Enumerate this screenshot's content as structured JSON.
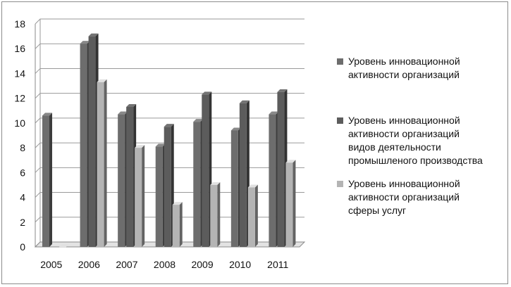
{
  "chart_data": {
    "type": "bar",
    "categories": [
      "2005",
      "2006",
      "2007",
      "2008",
      "2009",
      "2010",
      "2011"
    ],
    "series": [
      {
        "name": "Уровень инновационной активности организаций",
        "color": "#6d6d6d",
        "values": [
          10.6,
          16.4,
          10.7,
          8.1,
          10.1,
          9.4,
          10.7
        ]
      },
      {
        "name": "Уровень инновационной активности организаций видов деятельности промышленого производства",
        "color": "#5c5c5c",
        "values": [
          null,
          17.0,
          11.3,
          9.7,
          12.3,
          11.6,
          12.5
        ]
      },
      {
        "name": "Уровень инновационной активности организаций сферы услуг",
        "color": "#b4b4b4",
        "values": [
          0,
          13.3,
          8.0,
          3.4,
          5.0,
          4.8,
          6.8
        ]
      }
    ],
    "yticks": [
      "0",
      "2",
      "4",
      "6",
      "8",
      "10",
      "12",
      "14",
      "16",
      "18"
    ],
    "ylim": [
      0,
      18
    ],
    "grid": true,
    "legend_position": "right",
    "title": "",
    "xlabel": "",
    "ylabel": ""
  },
  "legend": [
    {
      "lines": [
        "Уровень инновационной",
        "активности организаций"
      ]
    },
    {
      "lines": [
        "Уровень инновационной",
        "активности организаций",
        "видов деятельности",
        "промышленого производства"
      ]
    },
    {
      "lines": [
        "Уровень инновационной",
        "активности организаций",
        "сферы услуг"
      ]
    }
  ]
}
